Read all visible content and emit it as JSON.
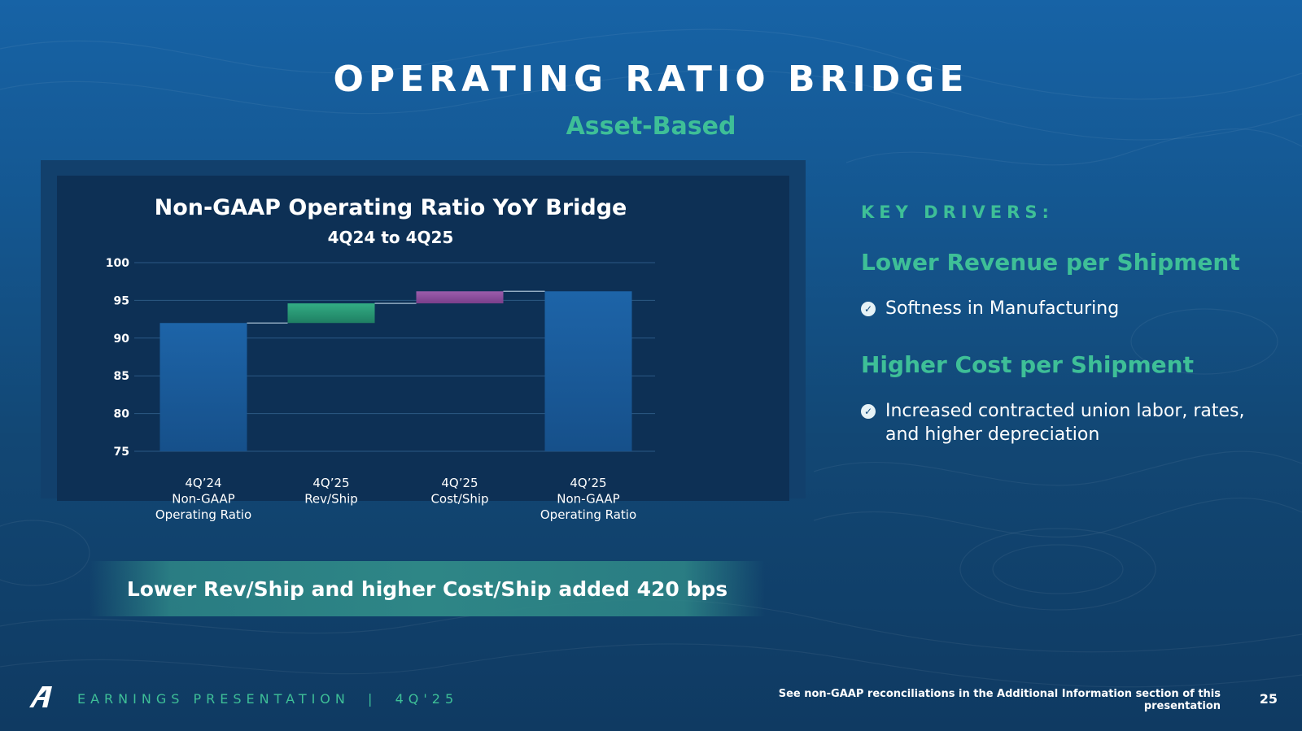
{
  "slide": {
    "title": "OPERATING RATIO BRIDGE",
    "subtitle": "Asset-Based"
  },
  "chart_data": {
    "type": "bar",
    "waterfall": true,
    "title": "Non-GAAP Operating Ratio YoY Bridge",
    "subtitle": "4Q24 to 4Q25",
    "categories": [
      [
        "4Q’24",
        "Non-GAAP",
        "Operating Ratio"
      ],
      [
        "4Q’25",
        "Rev/Ship"
      ],
      [
        "4Q’25",
        "Cost/Ship"
      ],
      [
        "4Q’25",
        "Non-GAAP",
        "Operating Ratio"
      ]
    ],
    "bars": [
      {
        "kind": "total",
        "start": 75,
        "end": 92.0,
        "color": "#1a5fa0"
      },
      {
        "kind": "increase",
        "start": 92.0,
        "end": 94.6,
        "color": "#2c9a75"
      },
      {
        "kind": "increase",
        "start": 94.6,
        "end": 96.2,
        "color": "#8c4f9a"
      },
      {
        "kind": "total",
        "start": 75,
        "end": 96.2,
        "color": "#1a5fa0"
      }
    ],
    "ylim": [
      75,
      100
    ],
    "yticks": [
      100,
      95,
      90,
      85,
      80,
      75
    ],
    "grid": true,
    "xlabel": "",
    "ylabel": ""
  },
  "callout": "Lower Rev/Ship and higher Cost/Ship added 420 bps",
  "key_drivers": {
    "heading": "KEY DRIVERS:",
    "drivers": [
      {
        "title": "Lower Revenue per Shipment",
        "bullet": "Softness in Manufacturing"
      },
      {
        "title": "Higher Cost per Shipment",
        "bullet": "Increased contracted union labor, rates, and higher depreciation"
      }
    ]
  },
  "footer": {
    "left": "EARNINGS PRESENTATION  |  4Q'25",
    "note": "See non-GAAP reconciliations in the Additional Information section of this presentation",
    "page": "25"
  },
  "colors": {
    "accent": "#3ebf97",
    "bar_total": "#1a5fa0",
    "bar_rev": "#2c9a75",
    "bar_cost": "#8c4f9a"
  }
}
